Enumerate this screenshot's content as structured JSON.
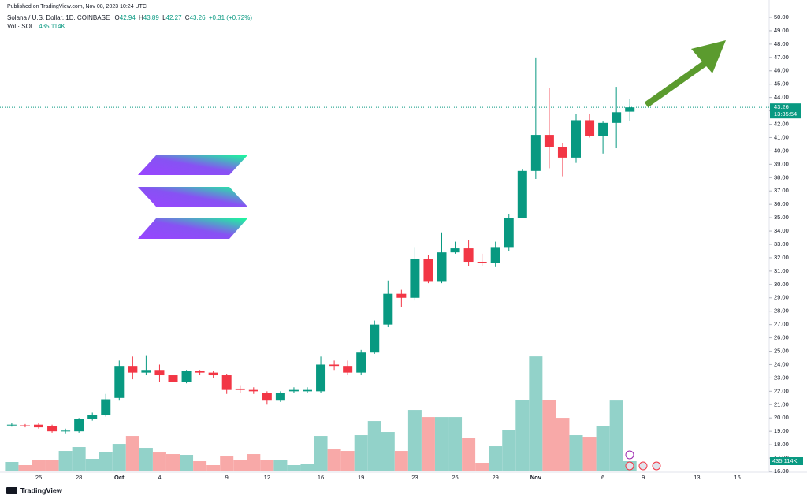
{
  "published": "Published on TradingView.com, Nov 08, 2023 10:24 UTC",
  "brand": "TradingView",
  "chart_data": {
    "type": "candlestick",
    "title": "Solana / U.S. Dollar, 1D, COINBASE",
    "legend_keys": [
      "O",
      "H",
      "L",
      "C"
    ],
    "change": "+0.31 (+0.72%)",
    "countdown": "13:35:54",
    "up_color": "#089981",
    "down_color": "#f23645",
    "price_line": true,
    "categories": [
      null,
      null,
      "25",
      null,
      null,
      "28",
      null,
      null,
      "Oct",
      null,
      null,
      "4",
      null,
      null,
      null,
      null,
      "9",
      null,
      null,
      "12",
      null,
      null,
      null,
      "16",
      null,
      null,
      "19",
      null,
      null,
      null,
      "23",
      null,
      null,
      "26",
      null,
      null,
      "29",
      null,
      null,
      "Nov",
      null,
      null,
      null,
      null,
      "6",
      null,
      null,
      "9",
      null,
      null,
      null,
      "13",
      null,
      null,
      "16"
    ],
    "open": [
      19.45,
      19.45,
      19.5,
      19.4,
      19.0,
      19.0,
      19.9,
      20.2,
      21.5,
      23.9,
      23.4,
      23.6,
      23.2,
      22.7,
      23.5,
      23.4,
      23.2,
      22.2,
      22.1,
      21.9,
      21.3,
      22.0,
      22.0,
      22.0,
      24.0,
      23.9,
      23.4,
      24.9,
      27.0,
      29.3,
      29.0,
      31.9,
      30.2,
      32.4,
      32.7,
      31.7,
      31.6,
      32.8,
      35.0,
      38.5,
      41.2,
      40.3,
      39.5,
      42.3,
      41.1,
      42.1,
      42.94,
      null,
      null,
      null,
      null,
      null,
      null,
      null,
      null
    ],
    "high": [
      19.6,
      19.55,
      19.6,
      19.5,
      19.2,
      20.0,
      20.4,
      21.8,
      24.3,
      24.6,
      24.7,
      24.0,
      23.5,
      23.6,
      23.6,
      23.5,
      23.3,
      22.4,
      22.3,
      22.0,
      22.0,
      22.3,
      22.3,
      24.6,
      24.3,
      24.3,
      25.1,
      27.3,
      30.3,
      29.6,
      32.8,
      32.2,
      33.9,
      33.2,
      33.3,
      32.3,
      33.2,
      35.3,
      38.6,
      47.0,
      44.7,
      40.6,
      42.8,
      42.8,
      42.2,
      44.8,
      43.89,
      null,
      null,
      null,
      null,
      null,
      null,
      null,
      null
    ],
    "low": [
      19.35,
      19.3,
      19.2,
      18.9,
      18.85,
      18.9,
      19.8,
      20.1,
      21.3,
      22.9,
      23.2,
      22.7,
      22.6,
      22.6,
      23.2,
      23.0,
      21.8,
      21.9,
      21.8,
      21.0,
      21.2,
      21.9,
      21.9,
      21.9,
      23.6,
      23.2,
      23.2,
      24.8,
      26.8,
      28.3,
      28.8,
      30.1,
      30.1,
      32.3,
      31.4,
      31.4,
      31.3,
      32.5,
      35.0,
      37.9,
      38.7,
      38.1,
      39.1,
      41.0,
      39.8,
      40.2,
      42.27,
      null,
      null,
      null,
      null,
      null,
      null,
      null,
      null
    ],
    "close": [
      19.5,
      19.4,
      19.3,
      19.0,
      19.05,
      19.9,
      20.2,
      21.4,
      23.9,
      23.4,
      23.6,
      23.2,
      22.7,
      23.5,
      23.4,
      23.2,
      22.1,
      22.1,
      22.0,
      21.3,
      21.9,
      22.1,
      22.1,
      24.0,
      23.9,
      23.4,
      24.9,
      27.0,
      29.3,
      29.0,
      31.9,
      30.2,
      32.4,
      32.7,
      31.7,
      31.6,
      32.8,
      35.0,
      38.5,
      41.2,
      40.3,
      39.5,
      42.3,
      41.1,
      42.1,
      42.9,
      43.26,
      null,
      null,
      null,
      null,
      null,
      null,
      null,
      null
    ],
    "ylim": [
      16,
      50
    ],
    "yticks": [
      {
        "value": 16,
        "label": "16.00"
      },
      {
        "value": 17,
        "label": "17.00"
      },
      {
        "value": 18,
        "label": "18.00"
      },
      {
        "value": 19,
        "label": "19.00"
      },
      {
        "value": 20,
        "label": "20.00"
      },
      {
        "value": 21,
        "label": "21.00"
      },
      {
        "value": 22,
        "label": "22.00"
      },
      {
        "value": 23,
        "label": "23.00"
      },
      {
        "value": 24,
        "label": "24.00"
      },
      {
        "value": 25,
        "label": "25.00"
      },
      {
        "value": 26,
        "label": "26.00"
      },
      {
        "value": 27,
        "label": "27.00"
      },
      {
        "value": 28,
        "label": "28.00"
      },
      {
        "value": 29,
        "label": "29.00"
      },
      {
        "value": 30,
        "label": "30.00"
      },
      {
        "value": 31,
        "label": "31.00"
      },
      {
        "value": 32,
        "label": "32.00"
      },
      {
        "value": 33,
        "label": "33.00"
      },
      {
        "value": 34,
        "label": "34.00"
      },
      {
        "value": 35,
        "label": "35.00"
      },
      {
        "value": 36,
        "label": "36.00"
      },
      {
        "value": 37,
        "label": "37.00"
      },
      {
        "value": 38,
        "label": "38.00"
      },
      {
        "value": 39,
        "label": "39.00"
      },
      {
        "value": 40,
        "label": "40.00"
      },
      {
        "value": 41,
        "label": "41.00"
      },
      {
        "value": 42,
        "label": "42.00"
      },
      {
        "value": 43,
        "label": "43.00"
      },
      {
        "value": 44,
        "label": "44.00"
      },
      {
        "value": 45,
        "label": "45.00"
      },
      {
        "value": 46,
        "label": "46.00"
      },
      {
        "value": 47,
        "label": "47.00"
      },
      {
        "value": 48,
        "label": "48.00"
      },
      {
        "value": 49,
        "label": "49.00"
      },
      {
        "value": 50,
        "label": "50.00"
      }
    ],
    "volume": {
      "name": "Vol · SOL",
      "up_color": "#92d2c9",
      "down_color": "#f8a9a8",
      "ylim": [
        0,
        6700000
      ],
      "values": [
        402000,
        268000,
        502000,
        502000,
        870000,
        1038000,
        536000,
        837000,
        1171000,
        1506000,
        1004000,
        803000,
        736000,
        703000,
        435000,
        268000,
        636000,
        469000,
        736000,
        469000,
        502000,
        268000,
        335000,
        1506000,
        937000,
        870000,
        1540000,
        2142000,
        1674000,
        870000,
        2611000,
        2309000,
        2309000,
        2309000,
        1439000,
        368000,
        1071000,
        1774000,
        3046000,
        4887000,
        3046000,
        2276000,
        1540000,
        1473000,
        1941000,
        3012000,
        435114,
        null,
        null,
        null,
        null,
        null,
        null,
        null,
        null
      ],
      "last_label": "435.114K"
    }
  }
}
